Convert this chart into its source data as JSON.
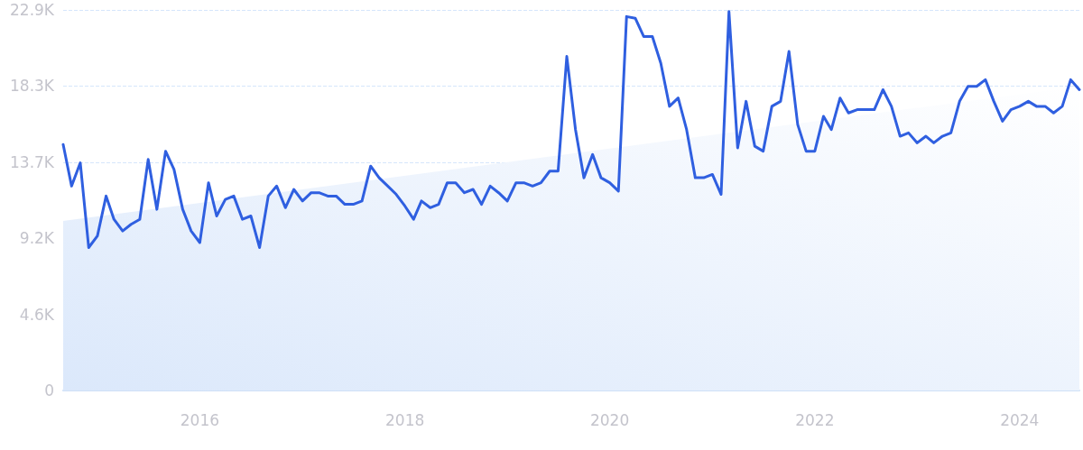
{
  "chart_data": {
    "type": "line",
    "x": [
      "2014-09",
      "2014-10",
      "2014-11",
      "2014-12",
      "2015-01",
      "2015-02",
      "2015-03",
      "2015-04",
      "2015-05",
      "2015-06",
      "2015-07",
      "2015-08",
      "2015-09",
      "2015-10",
      "2015-11",
      "2015-12",
      "2016-01",
      "2016-02",
      "2016-03",
      "2016-04",
      "2016-05",
      "2016-06",
      "2016-07",
      "2016-08",
      "2016-09",
      "2016-10",
      "2016-11",
      "2016-12",
      "2017-01",
      "2017-02",
      "2017-03",
      "2017-04",
      "2017-05",
      "2017-06",
      "2017-07",
      "2017-08",
      "2017-09",
      "2017-10",
      "2017-11",
      "2017-12",
      "2018-01",
      "2018-02",
      "2018-03",
      "2018-04",
      "2018-05",
      "2018-06",
      "2018-07",
      "2018-08",
      "2018-09",
      "2018-10",
      "2018-11",
      "2018-12",
      "2019-01",
      "2019-02",
      "2019-03",
      "2019-04",
      "2019-05",
      "2019-06",
      "2019-07",
      "2019-08",
      "2019-09",
      "2019-10",
      "2019-11",
      "2019-12",
      "2020-01",
      "2020-02",
      "2020-03",
      "2020-04",
      "2020-05",
      "2020-06",
      "2020-07",
      "2020-08",
      "2020-09",
      "2020-10",
      "2020-11",
      "2020-12",
      "2021-01",
      "2021-02",
      "2021-03",
      "2021-04",
      "2021-05",
      "2021-06",
      "2021-07",
      "2021-08",
      "2021-09",
      "2021-10",
      "2021-11",
      "2021-12",
      "2022-01",
      "2022-02",
      "2022-03",
      "2022-04",
      "2022-05",
      "2022-06",
      "2022-07",
      "2022-08",
      "2022-09",
      "2022-10",
      "2022-11",
      "2022-12",
      "2023-01",
      "2023-02",
      "2023-03",
      "2023-04",
      "2023-05",
      "2023-06",
      "2023-07",
      "2023-08",
      "2023-09",
      "2023-10",
      "2023-11",
      "2023-12",
      "2024-01",
      "2024-02",
      "2024-03",
      "2024-04",
      "2024-05",
      "2024-06",
      "2024-07",
      "2024-08"
    ],
    "series": [
      {
        "color": "#2f5fe0",
        "values": [
          14800,
          12300,
          13700,
          8600,
          9300,
          11700,
          10300,
          9600,
          10000,
          10300,
          13900,
          10900,
          14400,
          13300,
          10900,
          9600,
          8900,
          12500,
          10500,
          11500,
          11700,
          10300,
          10500,
          8600,
          11700,
          12300,
          11000,
          12100,
          11400,
          11900,
          11900,
          11700,
          11700,
          11200,
          11200,
          11400,
          13500,
          12800,
          12300,
          11800,
          11100,
          10300,
          11400,
          11000,
          11200,
          12500,
          12500,
          11900,
          12100,
          11200,
          12300,
          11900,
          11400,
          12500,
          12500,
          12300,
          12500,
          13200,
          13200,
          20100,
          15700,
          12800,
          14200,
          12800,
          12500,
          12000,
          22500,
          22400,
          21300,
          21300,
          19700,
          17100,
          17600,
          15700,
          12800,
          12800,
          13000,
          11800,
          22800,
          14600,
          17400,
          14700,
          14400,
          17100,
          17400,
          20400,
          16000,
          14400,
          14400,
          16500,
          15700,
          17600,
          16700,
          16900,
          16900,
          16900,
          18100,
          17100,
          15300,
          15500,
          14900,
          15300,
          14900,
          15300,
          15500,
          17400,
          18300,
          18300,
          18700,
          17400,
          16200,
          16900,
          17100,
          17400,
          17100,
          17100,
          16700,
          17100,
          18700,
          18100
        ]
      },
      {
        "type": "area",
        "color": "#dbe8fb",
        "x": [
          "2014-09",
          "2024-08"
        ],
        "values": [
          10200,
          18300
        ]
      }
    ],
    "xlim": [
      "2014-09",
      "2024-08"
    ],
    "xticks": [
      {
        "value": "2016",
        "label": "2016"
      },
      {
        "value": "2018",
        "label": "2018"
      },
      {
        "value": "2020",
        "label": "2020"
      },
      {
        "value": "2022",
        "label": "2022"
      },
      {
        "value": "2024",
        "label": "2024"
      }
    ],
    "ylim": [
      0,
      22900
    ],
    "yticks": [
      0,
      {
        "value": 4580,
        "label": "4.6K"
      },
      {
        "value": 9160,
        "label": "9.2K"
      },
      {
        "value": 13740,
        "label": "13.7K"
      },
      {
        "value": 18320,
        "label": "18.3K"
      },
      {
        "value": 22900,
        "label": "22.9K"
      }
    ],
    "grid": "y",
    "marker": "none",
    "line_style": "solid"
  }
}
